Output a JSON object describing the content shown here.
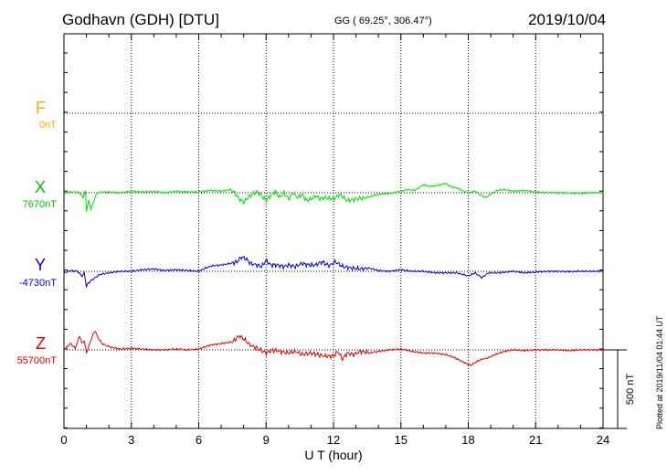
{
  "header": {
    "station": "Godhavn (GDH)  [DTU]",
    "coords": "GG ( 69.25°, 306.47°)",
    "date": "2019/10/04"
  },
  "footer": {
    "plotted": "Plotted at 2019/11/04 01:44 UT"
  },
  "chart_data": {
    "type": "line",
    "xlabel": "U T (hour)",
    "xlim": [
      0,
      24
    ],
    "xticks": [
      "0",
      "3",
      "6",
      "9",
      "12",
      "15",
      "18",
      "21",
      "24"
    ],
    "scale_bar_label": "500 nT",
    "grid": true,
    "series": [
      {
        "name": "F",
        "baseline_label": "0nT",
        "color": "#FFA500",
        "points": []
      },
      {
        "name": "X",
        "baseline_label": "7670nT",
        "color": "#00E000",
        "points": [
          [
            0.0,
            0
          ],
          [
            0.4,
            5
          ],
          [
            0.7,
            0
          ],
          [
            0.85,
            -30
          ],
          [
            0.95,
            10
          ],
          [
            1.0,
            -120
          ],
          [
            1.05,
            -80
          ],
          [
            1.1,
            -50
          ],
          [
            1.2,
            -100
          ],
          [
            1.3,
            -70
          ],
          [
            1.4,
            -20
          ],
          [
            1.5,
            0
          ],
          [
            2.0,
            5
          ],
          [
            2.5,
            0
          ],
          [
            3.0,
            10
          ],
          [
            3.5,
            5
          ],
          [
            4.0,
            8
          ],
          [
            4.5,
            0
          ],
          [
            5.0,
            10
          ],
          [
            5.5,
            5
          ],
          [
            6.0,
            5
          ],
          [
            6.5,
            15
          ],
          [
            7.0,
            10
          ],
          [
            7.4,
            20
          ],
          [
            7.6,
            0
          ],
          [
            7.8,
            -40
          ],
          [
            8.0,
            -60
          ],
          [
            8.2,
            -30
          ],
          [
            8.4,
            -10
          ],
          [
            8.6,
            10
          ],
          [
            8.8,
            -20
          ],
          [
            9.0,
            -50
          ],
          [
            9.2,
            -20
          ],
          [
            9.4,
            10
          ],
          [
            9.6,
            -30
          ],
          [
            9.8,
            0
          ],
          [
            10.0,
            -40
          ],
          [
            10.2,
            0
          ],
          [
            10.4,
            -30
          ],
          [
            10.6,
            -10
          ],
          [
            10.8,
            -50
          ],
          [
            11.0,
            -40
          ],
          [
            11.2,
            -20
          ],
          [
            11.4,
            -40
          ],
          [
            11.6,
            -30
          ],
          [
            12.0,
            -40
          ],
          [
            12.3,
            -10
          ],
          [
            12.6,
            -50
          ],
          [
            13.0,
            -40
          ],
          [
            13.5,
            -30
          ],
          [
            14.0,
            -10
          ],
          [
            14.5,
            -5
          ],
          [
            15.0,
            10
          ],
          [
            15.3,
            20
          ],
          [
            15.6,
            15
          ],
          [
            16.0,
            50
          ],
          [
            16.3,
            40
          ],
          [
            16.6,
            45
          ],
          [
            17.0,
            60
          ],
          [
            17.2,
            40
          ],
          [
            17.5,
            30
          ],
          [
            17.8,
            10
          ],
          [
            18.0,
            0
          ],
          [
            18.3,
            10
          ],
          [
            18.6,
            -20
          ],
          [
            18.8,
            -30
          ],
          [
            19.0,
            -10
          ],
          [
            19.3,
            15
          ],
          [
            19.6,
            20
          ],
          [
            20.0,
            10
          ],
          [
            20.5,
            15
          ],
          [
            21.0,
            5
          ],
          [
            21.5,
            0
          ],
          [
            22.0,
            0
          ],
          [
            22.5,
            -2
          ],
          [
            23.0,
            -5
          ],
          [
            23.5,
            0
          ],
          [
            24.0,
            0
          ]
        ]
      },
      {
        "name": "Y",
        "baseline_label": "-4730nT",
        "color": "#0000E0",
        "points": [
          [
            0.0,
            -10
          ],
          [
            0.3,
            5
          ],
          [
            0.6,
            0
          ],
          [
            0.8,
            -30
          ],
          [
            0.9,
            -10
          ],
          [
            1.0,
            -100
          ],
          [
            1.05,
            -80
          ],
          [
            1.2,
            -60
          ],
          [
            1.4,
            -40
          ],
          [
            1.6,
            -20
          ],
          [
            2.0,
            -10
          ],
          [
            2.5,
            0
          ],
          [
            3.0,
            0
          ],
          [
            3.5,
            10
          ],
          [
            4.0,
            15
          ],
          [
            4.5,
            5
          ],
          [
            5.0,
            10
          ],
          [
            5.5,
            5
          ],
          [
            6.0,
            0
          ],
          [
            6.3,
            20
          ],
          [
            6.6,
            35
          ],
          [
            7.0,
            40
          ],
          [
            7.4,
            50
          ],
          [
            7.7,
            60
          ],
          [
            7.9,
            90
          ],
          [
            8.1,
            80
          ],
          [
            8.3,
            50
          ],
          [
            8.6,
            40
          ],
          [
            8.8,
            30
          ],
          [
            9.0,
            70
          ],
          [
            9.2,
            40
          ],
          [
            9.5,
            40
          ],
          [
            9.8,
            30
          ],
          [
            10.0,
            40
          ],
          [
            10.3,
            30
          ],
          [
            10.6,
            50
          ],
          [
            10.9,
            40
          ],
          [
            11.2,
            40
          ],
          [
            11.5,
            60
          ],
          [
            11.8,
            35
          ],
          [
            12.1,
            60
          ],
          [
            12.4,
            30
          ],
          [
            12.8,
            20
          ],
          [
            13.2,
            15
          ],
          [
            13.6,
            20
          ],
          [
            14.0,
            5
          ],
          [
            14.5,
            0
          ],
          [
            15.0,
            10
          ],
          [
            15.5,
            0
          ],
          [
            16.0,
            0
          ],
          [
            16.5,
            -10
          ],
          [
            17.0,
            -10
          ],
          [
            17.5,
            -10
          ],
          [
            18.0,
            -30
          ],
          [
            18.3,
            -10
          ],
          [
            18.6,
            -40
          ],
          [
            18.9,
            -10
          ],
          [
            19.3,
            -10
          ],
          [
            19.7,
            -5
          ],
          [
            20.0,
            0
          ],
          [
            20.5,
            -10
          ],
          [
            21.0,
            -5
          ],
          [
            21.5,
            0
          ],
          [
            22.0,
            0
          ],
          [
            22.5,
            -2
          ],
          [
            23.0,
            0
          ],
          [
            23.5,
            0
          ],
          [
            24.0,
            0
          ]
        ]
      },
      {
        "name": "Z",
        "baseline_label": "55700nT",
        "color": "#E00000",
        "points": [
          [
            0.0,
            0
          ],
          [
            0.3,
            40
          ],
          [
            0.5,
            10
          ],
          [
            0.7,
            90
          ],
          [
            0.8,
            40
          ],
          [
            0.9,
            60
          ],
          [
            1.0,
            -20
          ],
          [
            1.1,
            20
          ],
          [
            1.2,
            60
          ],
          [
            1.3,
            100
          ],
          [
            1.4,
            120
          ],
          [
            1.5,
            80
          ],
          [
            1.7,
            40
          ],
          [
            2.0,
            20
          ],
          [
            2.5,
            5
          ],
          [
            3.0,
            10
          ],
          [
            3.5,
            5
          ],
          [
            4.0,
            0
          ],
          [
            4.5,
            0
          ],
          [
            5.0,
            5
          ],
          [
            5.5,
            0
          ],
          [
            6.0,
            5
          ],
          [
            6.5,
            30
          ],
          [
            7.0,
            40
          ],
          [
            7.5,
            50
          ],
          [
            7.8,
            90
          ],
          [
            8.0,
            70
          ],
          [
            8.3,
            30
          ],
          [
            8.6,
            10
          ],
          [
            9.0,
            -20
          ],
          [
            9.3,
            0
          ],
          [
            9.6,
            -10
          ],
          [
            10.0,
            -20
          ],
          [
            10.3,
            -10
          ],
          [
            10.6,
            -30
          ],
          [
            11.0,
            -20
          ],
          [
            11.3,
            -30
          ],
          [
            11.6,
            -40
          ],
          [
            12.0,
            -40
          ],
          [
            12.2,
            -10
          ],
          [
            12.4,
            -60
          ],
          [
            12.6,
            -20
          ],
          [
            12.9,
            -30
          ],
          [
            13.2,
            -10
          ],
          [
            13.6,
            -20
          ],
          [
            14.0,
            -10
          ],
          [
            14.5,
            0
          ],
          [
            15.0,
            5
          ],
          [
            15.5,
            -10
          ],
          [
            16.0,
            -20
          ],
          [
            16.5,
            -20
          ],
          [
            17.0,
            -30
          ],
          [
            17.4,
            -50
          ],
          [
            17.8,
            -80
          ],
          [
            18.1,
            -100
          ],
          [
            18.3,
            -80
          ],
          [
            18.6,
            -60
          ],
          [
            18.9,
            -50
          ],
          [
            19.2,
            -30
          ],
          [
            19.6,
            -10
          ],
          [
            20.0,
            0
          ],
          [
            20.5,
            -5
          ],
          [
            21.0,
            0
          ],
          [
            21.5,
            0
          ],
          [
            22.0,
            0
          ],
          [
            22.5,
            -5
          ],
          [
            23.0,
            0
          ],
          [
            23.5,
            0
          ],
          [
            24.0,
            0
          ]
        ]
      }
    ]
  }
}
